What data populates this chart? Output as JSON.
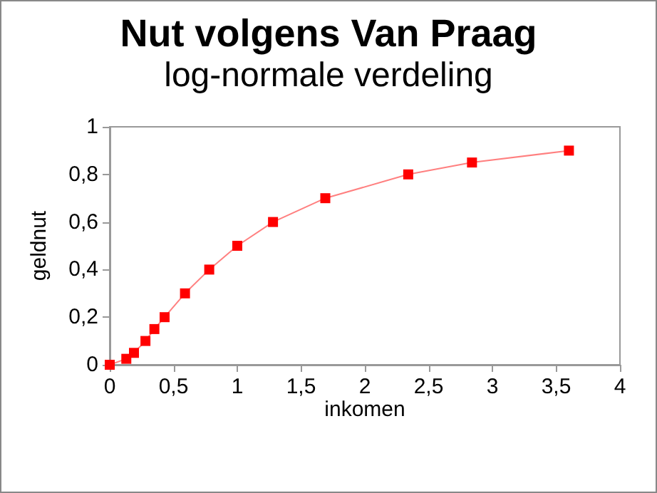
{
  "chart_data": {
    "type": "line",
    "title": "Nut volgens Van Praag",
    "subtitle": "log-normale verdeling",
    "xlabel": "inkomen",
    "ylabel": "geldnut",
    "x": [
      0,
      0.13,
      0.19,
      0.28,
      0.35,
      0.43,
      0.59,
      0.78,
      1,
      1.28,
      1.69,
      2.34,
      2.84,
      3.6
    ],
    "series": [
      {
        "color": "#ff0000",
        "values": [
          0,
          0.025,
          0.05,
          0.1,
          0.15,
          0.2,
          0.3,
          0.4,
          0.5,
          0.6,
          0.7,
          0.8,
          0.85,
          0.9
        ]
      }
    ],
    "xlim": [
      0,
      4
    ],
    "xticks": [
      0,
      {
        "value": 0.5,
        "label": "0,5"
      },
      1,
      {
        "value": 1.5,
        "label": "1,5"
      },
      2,
      {
        "value": 2.5,
        "label": "2,5"
      },
      3,
      {
        "value": 3.5,
        "label": "3,5"
      },
      4
    ],
    "ylim": [
      0,
      1
    ],
    "yticks": [
      0,
      {
        "value": 0.2,
        "label": "0,2"
      },
      {
        "value": 0.4,
        "label": "0,4"
      },
      {
        "value": 0.6,
        "label": "0,6"
      },
      {
        "value": 0.8,
        "label": "0,8"
      },
      1
    ],
    "grid": false,
    "marker": "square",
    "line_style": "solid"
  }
}
